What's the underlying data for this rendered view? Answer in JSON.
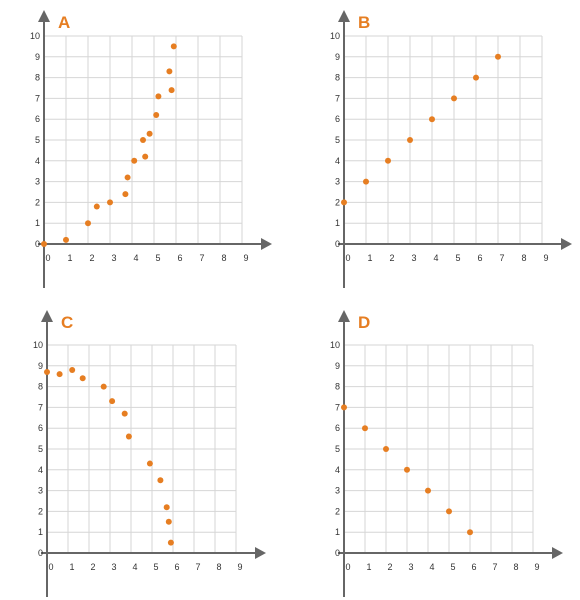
{
  "accent_color": "#e67e22",
  "grid_color": "#d6d6d6",
  "axis_color": "#666666",
  "chart_data": [
    {
      "type": "scatter",
      "title": "A",
      "xlim": [
        0,
        9
      ],
      "ylim": [
        0,
        10
      ],
      "x_ticks": [
        "0",
        "1",
        "2",
        "3",
        "4",
        "5",
        "6",
        "7",
        "8",
        "9"
      ],
      "y_ticks": [
        "0",
        "1",
        "2",
        "3",
        "4",
        "5",
        "6",
        "7",
        "8",
        "9",
        "10"
      ],
      "grid": true,
      "series": [
        {
          "points": [
            [
              0,
              0
            ],
            [
              1,
              0.2
            ],
            [
              2,
              1
            ],
            [
              2.4,
              1.8
            ],
            [
              3,
              2
            ],
            [
              3.7,
              2.4
            ],
            [
              3.8,
              3.2
            ],
            [
              4.1,
              4
            ],
            [
              4.6,
              4.2
            ],
            [
              4.5,
              5
            ],
            [
              4.8,
              5.3
            ],
            [
              5.1,
              6.2
            ],
            [
              5.2,
              7.1
            ],
            [
              5.8,
              7.4
            ],
            [
              5.7,
              8.3
            ],
            [
              5.9,
              9.5
            ]
          ]
        }
      ]
    },
    {
      "type": "scatter",
      "title": "B",
      "xlim": [
        0,
        9
      ],
      "ylim": [
        0,
        10
      ],
      "x_ticks": [
        "0",
        "1",
        "2",
        "3",
        "4",
        "5",
        "6",
        "7",
        "8",
        "9"
      ],
      "y_ticks": [
        "0",
        "1",
        "2",
        "3",
        "4",
        "5",
        "6",
        "7",
        "8",
        "9",
        "10"
      ],
      "grid": true,
      "series": [
        {
          "points": [
            [
              0,
              2
            ],
            [
              1,
              3
            ],
            [
              2,
              4
            ],
            [
              3,
              5
            ],
            [
              4,
              6
            ],
            [
              5,
              7
            ],
            [
              6,
              8
            ],
            [
              7,
              9
            ]
          ]
        }
      ]
    },
    {
      "type": "scatter",
      "title": "C",
      "xlim": [
        0,
        9
      ],
      "ylim": [
        0,
        10
      ],
      "x_ticks": [
        "0",
        "1",
        "2",
        "3",
        "4",
        "5",
        "6",
        "7",
        "8",
        "9"
      ],
      "y_ticks": [
        "0",
        "1",
        "2",
        "3",
        "4",
        "5",
        "6",
        "7",
        "8",
        "9",
        "10"
      ],
      "grid": true,
      "series": [
        {
          "points": [
            [
              0,
              8.7
            ],
            [
              0.6,
              8.6
            ],
            [
              1.2,
              8.8
            ],
            [
              1.7,
              8.4
            ],
            [
              2.7,
              8
            ],
            [
              3.1,
              7.3
            ],
            [
              3.7,
              6.7
            ],
            [
              3.9,
              5.6
            ],
            [
              4.9,
              4.3
            ],
            [
              5.4,
              3.5
            ],
            [
              5.7,
              2.2
            ],
            [
              5.8,
              1.5
            ],
            [
              5.9,
              0.5
            ]
          ]
        }
      ]
    },
    {
      "type": "scatter",
      "title": "D",
      "xlim": [
        0,
        9
      ],
      "ylim": [
        0,
        10
      ],
      "x_ticks": [
        "0",
        "1",
        "2",
        "3",
        "4",
        "5",
        "6",
        "7",
        "8",
        "9"
      ],
      "y_ticks": [
        "0",
        "1",
        "2",
        "3",
        "4",
        "5",
        "6",
        "7",
        "8",
        "9",
        "10"
      ],
      "grid": true,
      "series": [
        {
          "points": [
            [
              0,
              7
            ],
            [
              1,
              6
            ],
            [
              2,
              5
            ],
            [
              3,
              4
            ],
            [
              4,
              3
            ],
            [
              5,
              2
            ],
            [
              6,
              1
            ]
          ]
        }
      ]
    }
  ]
}
